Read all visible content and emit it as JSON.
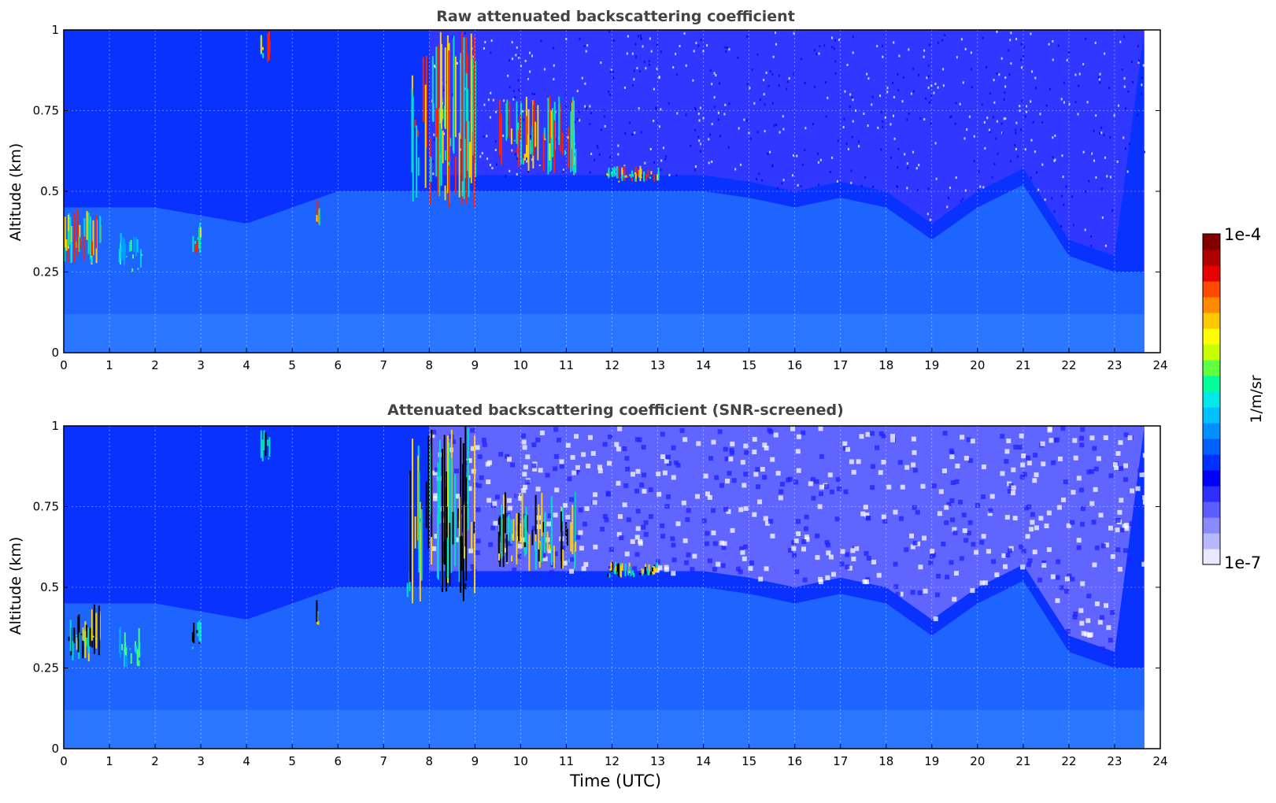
{
  "figure": {
    "xlabel": "Time (UTC)"
  },
  "colorbar": {
    "label": "1/m/sr",
    "max_label": "1e-4",
    "min_label": "1e-7",
    "colors": [
      "#e8e8ff",
      "#b8b8ff",
      "#8a8aff",
      "#5c5cff",
      "#2e2eff",
      "#0000ff",
      "#0030ff",
      "#0060ff",
      "#0090ff",
      "#00c0ff",
      "#00e8e8",
      "#00ff9a",
      "#60ff40",
      "#c8ff00",
      "#ffff00",
      "#ffc800",
      "#ff8a00",
      "#ff4a00",
      "#e60000",
      "#b00000",
      "#800000"
    ]
  },
  "chart_data": [
    {
      "type": "heatmap",
      "title": "Raw attenuated backscattering coefficient",
      "xlabel": "",
      "ylabel": "Altitude (km)",
      "xlim": [
        0,
        24
      ],
      "ylim": [
        0,
        1
      ],
      "x_ticks": [
        "0",
        "1",
        "2",
        "3",
        "4",
        "5",
        "6",
        "7",
        "8",
        "9",
        "10",
        "11",
        "12",
        "13",
        "14",
        "15",
        "16",
        "17",
        "18",
        "19",
        "20",
        "21",
        "22",
        "23",
        "24"
      ],
      "y_ticks": [
        "0",
        "0.25",
        "0.5",
        "0.75",
        "1"
      ],
      "grid": true,
      "data_end_time": 23.65,
      "colorscale": "jet",
      "color_range": [
        1e-07,
        0.0001
      ],
      "boundary_layer_top_km": [
        [
          0,
          0.45
        ],
        [
          2,
          0.45
        ],
        [
          4,
          0.4
        ],
        [
          6,
          0.5
        ],
        [
          8,
          0.5
        ],
        [
          10,
          0.5
        ],
        [
          12,
          0.5
        ],
        [
          14,
          0.5
        ],
        [
          15,
          0.48
        ],
        [
          16,
          0.45
        ],
        [
          17,
          0.48
        ],
        [
          18,
          0.45
        ],
        [
          19,
          0.35
        ],
        [
          20,
          0.45
        ],
        [
          21,
          0.52
        ],
        [
          22,
          0.3
        ],
        [
          23,
          0.25
        ]
      ],
      "aerosol_layers": [
        {
          "t_start": 0.0,
          "t_end": 0.8,
          "z_low": 0.27,
          "z_high": 0.45,
          "level": "high"
        },
        {
          "t_start": 1.2,
          "t_end": 1.7,
          "z_low": 0.25,
          "z_high": 0.38,
          "level": "medium"
        },
        {
          "t_start": 2.8,
          "t_end": 3.0,
          "z_low": 0.3,
          "z_high": 0.42,
          "level": "high"
        },
        {
          "t_start": 4.3,
          "t_end": 4.5,
          "z_low": 0.88,
          "z_high": 1.0,
          "level": "high"
        },
        {
          "t_start": 5.5,
          "t_end": 5.6,
          "z_low": 0.38,
          "z_high": 0.48,
          "level": "high"
        },
        {
          "t_start": 7.5,
          "t_end": 9.0,
          "z_low": 0.45,
          "z_high": 1.0,
          "level": "high"
        },
        {
          "t_start": 9.5,
          "t_end": 11.2,
          "z_low": 0.55,
          "z_high": 0.8,
          "level": "high"
        },
        {
          "t_start": 11.8,
          "t_end": 13.0,
          "z_low": 0.53,
          "z_high": 0.58,
          "level": "high"
        }
      ]
    },
    {
      "type": "heatmap",
      "title": "Attenuated backscattering coefficient (SNR-screened)",
      "xlabel": "Time (UTC)",
      "ylabel": "Altitude (km)",
      "xlim": [
        0,
        24
      ],
      "ylim": [
        0,
        1
      ],
      "x_ticks": [
        "0",
        "1",
        "2",
        "3",
        "4",
        "5",
        "6",
        "7",
        "8",
        "9",
        "10",
        "11",
        "12",
        "13",
        "14",
        "15",
        "16",
        "17",
        "18",
        "19",
        "20",
        "21",
        "22",
        "23",
        "24"
      ],
      "y_ticks": [
        "0",
        "0.25",
        "0.5",
        "0.75",
        "1"
      ],
      "grid": true,
      "data_end_time": 23.65,
      "colorscale": "jet",
      "color_range": [
        1e-07,
        0.0001
      ],
      "boundary_layer_top_km": [
        [
          0,
          0.45
        ],
        [
          2,
          0.45
        ],
        [
          4,
          0.4
        ],
        [
          6,
          0.5
        ],
        [
          8,
          0.5
        ],
        [
          10,
          0.5
        ],
        [
          12,
          0.5
        ],
        [
          14,
          0.5
        ],
        [
          15,
          0.48
        ],
        [
          16,
          0.45
        ],
        [
          17,
          0.48
        ],
        [
          18,
          0.45
        ],
        [
          19,
          0.35
        ],
        [
          20,
          0.45
        ],
        [
          21,
          0.52
        ],
        [
          22,
          0.3
        ],
        [
          23,
          0.25
        ]
      ],
      "aerosol_layers": [
        {
          "t_start": 0.0,
          "t_end": 0.8,
          "z_low": 0.27,
          "z_high": 0.45,
          "level": "saturated"
        },
        {
          "t_start": 1.2,
          "t_end": 1.7,
          "z_low": 0.25,
          "z_high": 0.38,
          "level": "medium"
        },
        {
          "t_start": 2.8,
          "t_end": 3.0,
          "z_low": 0.3,
          "z_high": 0.42,
          "level": "saturated"
        },
        {
          "t_start": 4.3,
          "t_end": 4.5,
          "z_low": 0.88,
          "z_high": 1.0,
          "level": "saturated"
        },
        {
          "t_start": 5.5,
          "t_end": 5.6,
          "z_low": 0.38,
          "z_high": 0.48,
          "level": "saturated"
        },
        {
          "t_start": 7.5,
          "t_end": 9.0,
          "z_low": 0.45,
          "z_high": 1.0,
          "level": "saturated"
        },
        {
          "t_start": 9.5,
          "t_end": 11.2,
          "z_low": 0.55,
          "z_high": 0.8,
          "level": "saturated"
        },
        {
          "t_start": 11.8,
          "t_end": 13.0,
          "z_low": 0.53,
          "z_high": 0.58,
          "level": "saturated"
        }
      ]
    }
  ]
}
